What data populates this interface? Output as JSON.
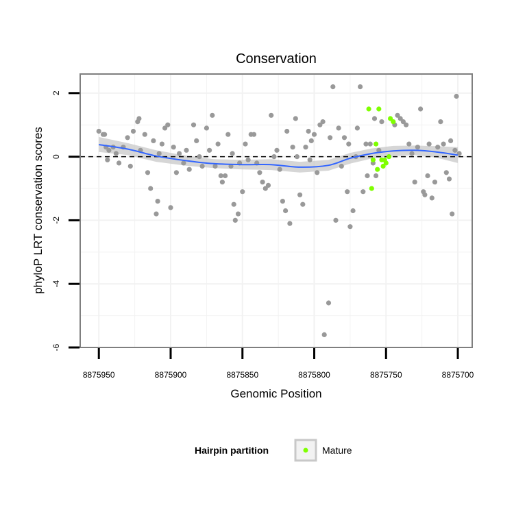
{
  "chart_data": {
    "type": "scatter",
    "title": "Conservation",
    "xlabel": "Genomic Position",
    "ylabel": "phyloP LRT conservation scores",
    "xlim": [
      8875963,
      8875690
    ],
    "x_reversed": true,
    "ylim": [
      -6,
      2.6
    ],
    "x_ticks": [
      8875950,
      8875900,
      8875850,
      8875800,
      8875750,
      8875700
    ],
    "x_tick_labels": [
      "8875950",
      "8875900",
      "8875850",
      "8875800",
      "8875750",
      "8875700"
    ],
    "y_ticks": [
      -6,
      -4,
      -2,
      0,
      2
    ],
    "y_tick_labels": [
      "-6",
      "-4",
      "-2",
      "0",
      "2"
    ],
    "grid": true,
    "reference_line": {
      "y": 0,
      "style": "dashed",
      "color": "#000000"
    },
    "colors": {
      "background_points": "#999999",
      "mature_points": "#7fff00",
      "smooth_line": "#3366ff",
      "confidence_band": "#c8c8c8",
      "panel_border": "#7f7f7f",
      "grid": "#f2f2f2"
    },
    "legend": {
      "title": "Hairpin partition",
      "position": "bottom",
      "entries": [
        {
          "label": "Mature",
          "color": "#7fff00"
        }
      ]
    },
    "series": [
      {
        "color": "#999999",
        "points": [
          [
            8875950,
            0.8
          ],
          [
            8875947,
            0.7
          ],
          [
            8875946,
            0.7
          ],
          [
            8875945,
            0.3
          ],
          [
            8875944,
            -0.1
          ],
          [
            8875943,
            0.2
          ],
          [
            8875940,
            0.3
          ],
          [
            8875938,
            0.1
          ],
          [
            8875936,
            -0.2
          ],
          [
            8875933,
            0.3
          ],
          [
            8875930,
            0.6
          ],
          [
            8875928,
            -0.3
          ],
          [
            8875926,
            0.8
          ],
          [
            8875923,
            1.1
          ],
          [
            8875922,
            1.2
          ],
          [
            8875921,
            0.2
          ],
          [
            8875918,
            0.7
          ],
          [
            8875916,
            -0.5
          ],
          [
            8875914,
            -1.0
          ],
          [
            8875912,
            0.5
          ],
          [
            8875910,
            -1.8
          ],
          [
            8875909,
            -1.4
          ],
          [
            8875908,
            0.1
          ],
          [
            8875906,
            0.4
          ],
          [
            8875904,
            0.9
          ],
          [
            8875902,
            1.0
          ],
          [
            8875900,
            -1.6
          ],
          [
            8875898,
            0.3
          ],
          [
            8875896,
            -0.5
          ],
          [
            8875894,
            0.1
          ],
          [
            8875891,
            -0.2
          ],
          [
            8875889,
            0.2
          ],
          [
            8875887,
            -0.4
          ],
          [
            8875884,
            1.0
          ],
          [
            8875882,
            0.5
          ],
          [
            8875880,
            0.0
          ],
          [
            8875878,
            -0.3
          ],
          [
            8875875,
            0.9
          ],
          [
            8875873,
            0.2
          ],
          [
            8875871,
            1.3
          ],
          [
            8875869,
            -0.3
          ],
          [
            8875867,
            0.4
          ],
          [
            8875865,
            -0.6
          ],
          [
            8875864,
            -0.8
          ],
          [
            8875862,
            -0.6
          ],
          [
            8875860,
            0.7
          ],
          [
            8875858,
            -0.3
          ],
          [
            8875857,
            0.1
          ],
          [
            8875856,
            -1.5
          ],
          [
            8875855,
            -2.0
          ],
          [
            8875853,
            -1.8
          ],
          [
            8875852,
            -0.2
          ],
          [
            8875850,
            -1.1
          ],
          [
            8875848,
            0.4
          ],
          [
            8875846,
            -0.1
          ],
          [
            8875844,
            0.7
          ],
          [
            8875842,
            0.7
          ],
          [
            8875840,
            -0.2
          ],
          [
            8875838,
            -0.5
          ],
          [
            8875836,
            -0.8
          ],
          [
            8875834,
            -1.0
          ],
          [
            8875832,
            -0.9
          ],
          [
            8875830,
            1.3
          ],
          [
            8875828,
            0.0
          ],
          [
            8875826,
            0.2
          ],
          [
            8875824,
            -0.4
          ],
          [
            8875822,
            -1.4
          ],
          [
            8875820,
            -1.7
          ],
          [
            8875819,
            0.8
          ],
          [
            8875817,
            -2.1
          ],
          [
            8875815,
            0.3
          ],
          [
            8875813,
            1.2
          ],
          [
            8875812,
            0.0
          ],
          [
            8875810,
            -1.2
          ],
          [
            8875808,
            -1.5
          ],
          [
            8875806,
            0.3
          ],
          [
            8875804,
            0.8
          ],
          [
            8875803,
            -0.1
          ],
          [
            8875802,
            0.5
          ],
          [
            8875800,
            0.7
          ],
          [
            8875798,
            -0.5
          ],
          [
            8875796,
            1.0
          ],
          [
            8875794,
            1.1
          ],
          [
            8875793,
            -5.6
          ],
          [
            8875790,
            -4.6
          ],
          [
            8875789,
            0.6
          ],
          [
            8875787,
            2.2
          ],
          [
            8875785,
            -2.0
          ],
          [
            8875783,
            0.9
          ],
          [
            8875781,
            -0.3
          ],
          [
            8875779,
            0.6
          ],
          [
            8875777,
            -1.1
          ],
          [
            8875776,
            0.4
          ],
          [
            8875775,
            -2.2
          ],
          [
            8875773,
            -1.7
          ],
          [
            8875771,
            0.0
          ],
          [
            8875770,
            0.9
          ],
          [
            8875768,
            2.2
          ],
          [
            8875766,
            -1.1
          ],
          [
            8875764,
            0.4
          ],
          [
            8875763,
            -0.6
          ],
          [
            8875761,
            0.4
          ],
          [
            8875759,
            -0.2
          ],
          [
            8875758,
            1.2
          ],
          [
            8875757,
            -0.6
          ],
          [
            8875755,
            0.2
          ],
          [
            8875753,
            1.1
          ],
          [
            8875744,
            1.0
          ],
          [
            8875742,
            1.3
          ],
          [
            8875740,
            1.2
          ],
          [
            8875738,
            1.1
          ],
          [
            8875736,
            1.0
          ],
          [
            8875734,
            0.4
          ],
          [
            8875732,
            0.1
          ],
          [
            8875730,
            -0.8
          ],
          [
            8875728,
            0.3
          ],
          [
            8875726,
            1.5
          ],
          [
            8875724,
            -1.1
          ],
          [
            8875723,
            -1.2
          ],
          [
            8875721,
            -0.6
          ],
          [
            8875720,
            0.4
          ],
          [
            8875718,
            -1.3
          ],
          [
            8875716,
            -0.8
          ],
          [
            8875714,
            0.3
          ],
          [
            8875712,
            1.1
          ],
          [
            8875710,
            0.4
          ],
          [
            8875708,
            -0.5
          ],
          [
            8875706,
            -0.7
          ],
          [
            8875705,
            0.5
          ],
          [
            8875704,
            -1.8
          ],
          [
            8875702,
            0.2
          ],
          [
            8875701,
            1.9
          ],
          [
            8875699,
            0.1
          ]
        ]
      },
      {
        "name": "Mature",
        "color": "#7fff00",
        "points": [
          [
            8875762,
            1.5
          ],
          [
            8875755,
            1.5
          ],
          [
            8875747,
            1.2
          ],
          [
            8875745,
            1.1
          ],
          [
            8875757,
            0.4
          ],
          [
            8875753,
            -0.1
          ],
          [
            8875759,
            -0.1
          ],
          [
            8875756,
            -0.4
          ],
          [
            8875750,
            -0.2
          ],
          [
            8875752,
            -0.3
          ],
          [
            8875748,
            0.0
          ],
          [
            8875760,
            -1.0
          ],
          [
            8875751,
            -0.1
          ]
        ]
      }
    ],
    "smooth_line": {
      "x": [
        8875950,
        8875930,
        8875910,
        8875890,
        8875870,
        8875850,
        8875830,
        8875810,
        8875790,
        8875775,
        8875760,
        8875745,
        8875730,
        8875715,
        8875700
      ],
      "y": [
        0.38,
        0.24,
        0.02,
        -0.12,
        -0.22,
        -0.25,
        -0.25,
        -0.33,
        -0.27,
        -0.05,
        0.1,
        0.18,
        0.2,
        0.15,
        0.05
      ],
      "lower": [
        0.15,
        0.05,
        -0.16,
        -0.28,
        -0.36,
        -0.4,
        -0.42,
        -0.5,
        -0.44,
        -0.22,
        -0.06,
        0.02,
        0.05,
        -0.03,
        -0.2
      ],
      "upper": [
        0.62,
        0.43,
        0.2,
        0.04,
        -0.08,
        -0.1,
        -0.08,
        -0.16,
        -0.1,
        0.12,
        0.26,
        0.34,
        0.35,
        0.33,
        0.3
      ]
    }
  }
}
